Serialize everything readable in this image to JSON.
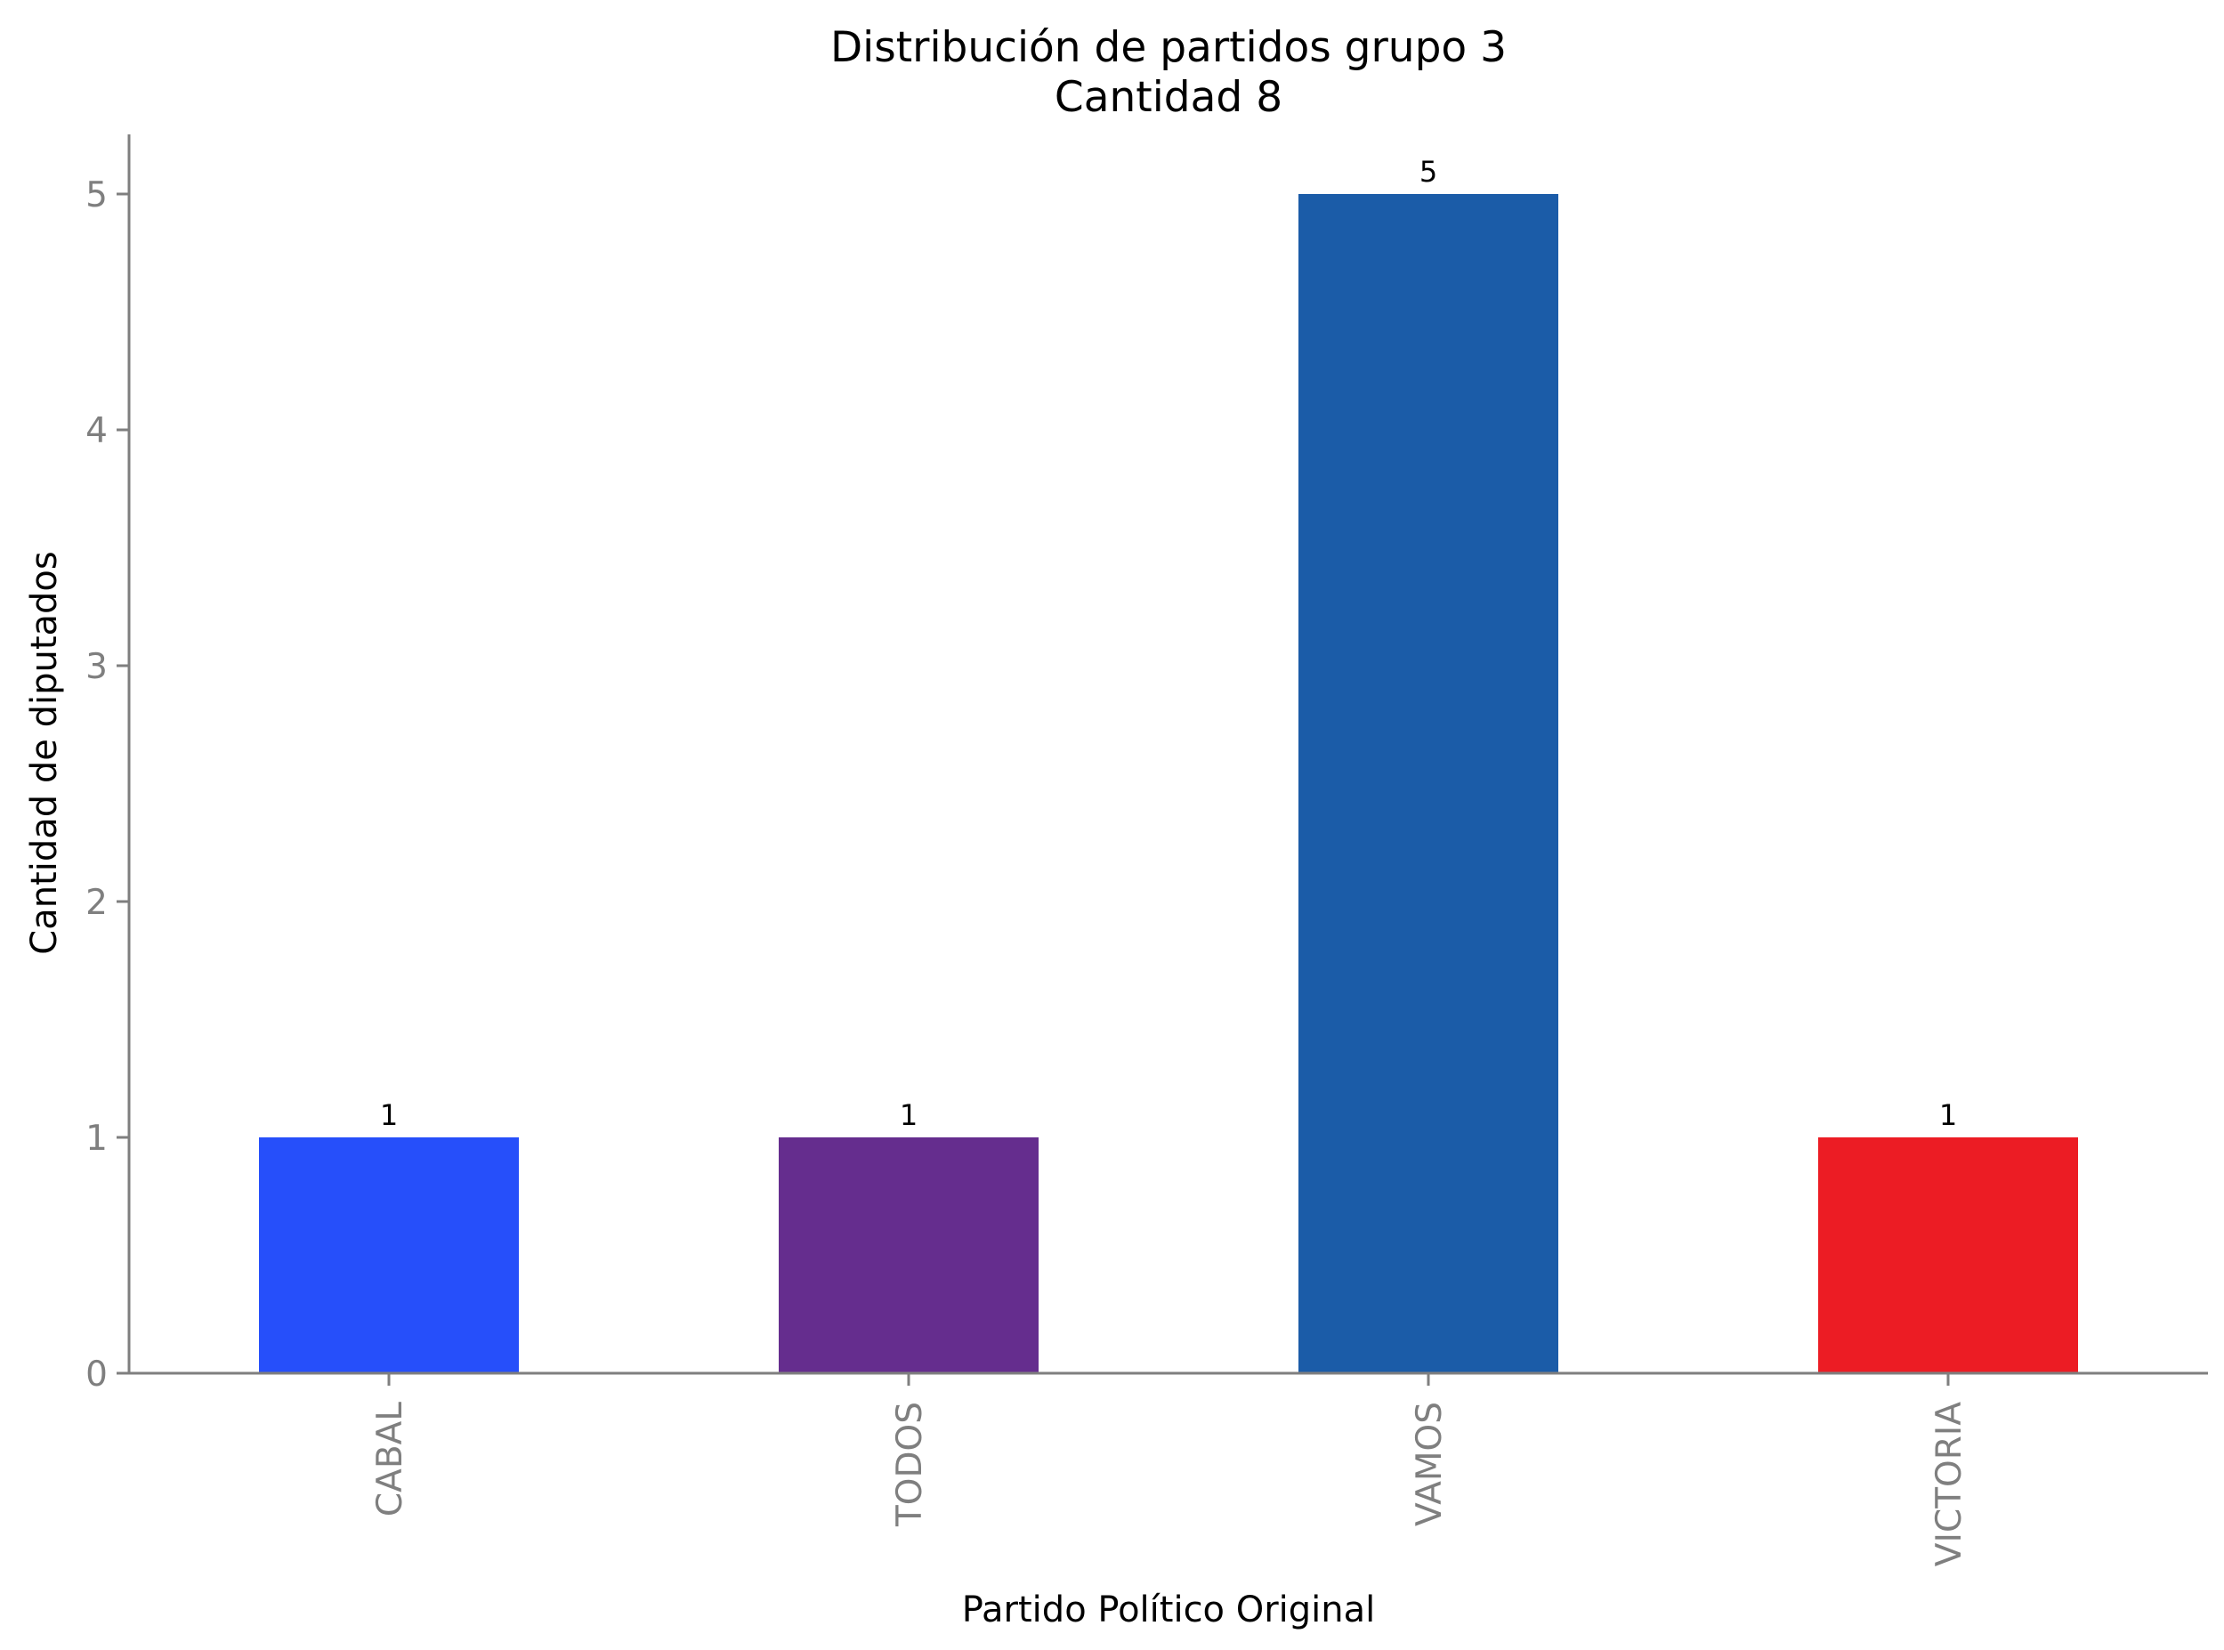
{
  "chart_data": {
    "type": "bar",
    "title": "Distribución de partidos grupo 3",
    "subtitle": "Cantidad 8",
    "xlabel": "Partido Político Original",
    "ylabel": "Cantidad de diputados",
    "categories": [
      "CABAL",
      "TODOS",
      "VAMOS",
      "VICTORIA"
    ],
    "values": [
      1,
      1,
      5,
      1
    ],
    "data_labels": [
      "1",
      "1",
      "5",
      "1"
    ],
    "colors": [
      "#264ffa",
      "#652d8e",
      "#1b5ca8",
      "#ec1c24"
    ],
    "ylim": [
      0,
      5.25
    ],
    "yticks": [
      0,
      1,
      2,
      3,
      4,
      5
    ],
    "ytick_labels": [
      "0",
      "1",
      "2",
      "3",
      "4",
      "5"
    ],
    "grid": false,
    "legend": "none",
    "axis_color": "#7f7f7f",
    "tick_label_color": "#7f7f7f"
  }
}
